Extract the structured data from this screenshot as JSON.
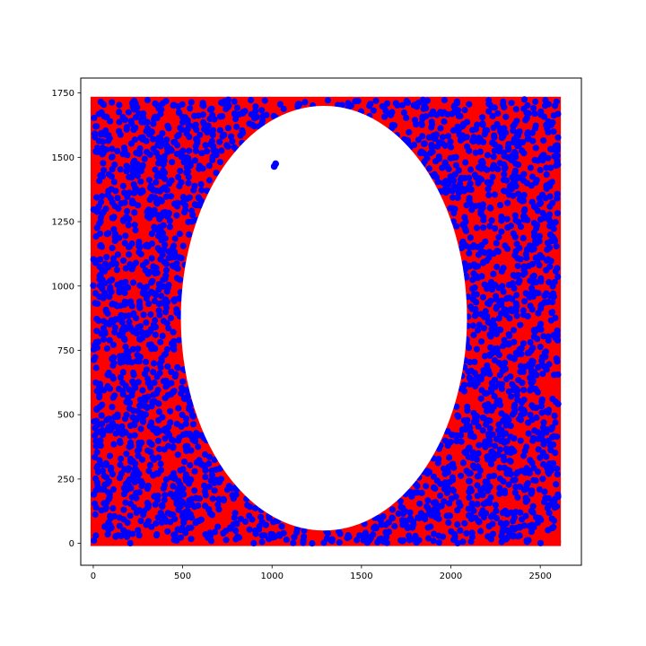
{
  "chart_data": {
    "type": "scatter",
    "title": "",
    "xlabel": "",
    "ylabel": "",
    "xlim": [
      -70,
      2730
    ],
    "ylim": [
      -85,
      1808
    ],
    "xticks": [
      0,
      500,
      1000,
      1500,
      2000,
      2500
    ],
    "yticks": [
      0,
      250,
      500,
      750,
      1000,
      1250,
      1500,
      1750
    ],
    "xtick_labels": [
      "0",
      "500",
      "1000",
      "1500",
      "2000",
      "2500"
    ],
    "ytick_labels": [
      "0",
      "250",
      "500",
      "750",
      "1000",
      "1250",
      "1500",
      "1750"
    ],
    "grid": false,
    "legend": "none",
    "region": {
      "x_range": [
        0,
        2600
      ],
      "y_range": [
        0,
        1725
      ]
    },
    "hole": {
      "shape": "ellipse",
      "center": [
        1290,
        875
      ],
      "radii": [
        800,
        825
      ]
    },
    "outlier_points": [
      [
        1012,
        1465
      ],
      [
        1020,
        1475
      ]
    ],
    "series": [
      {
        "color": "#ff0000",
        "role": "background-fill"
      },
      {
        "color": "#0000ff",
        "role": "foreground-points"
      }
    ]
  }
}
